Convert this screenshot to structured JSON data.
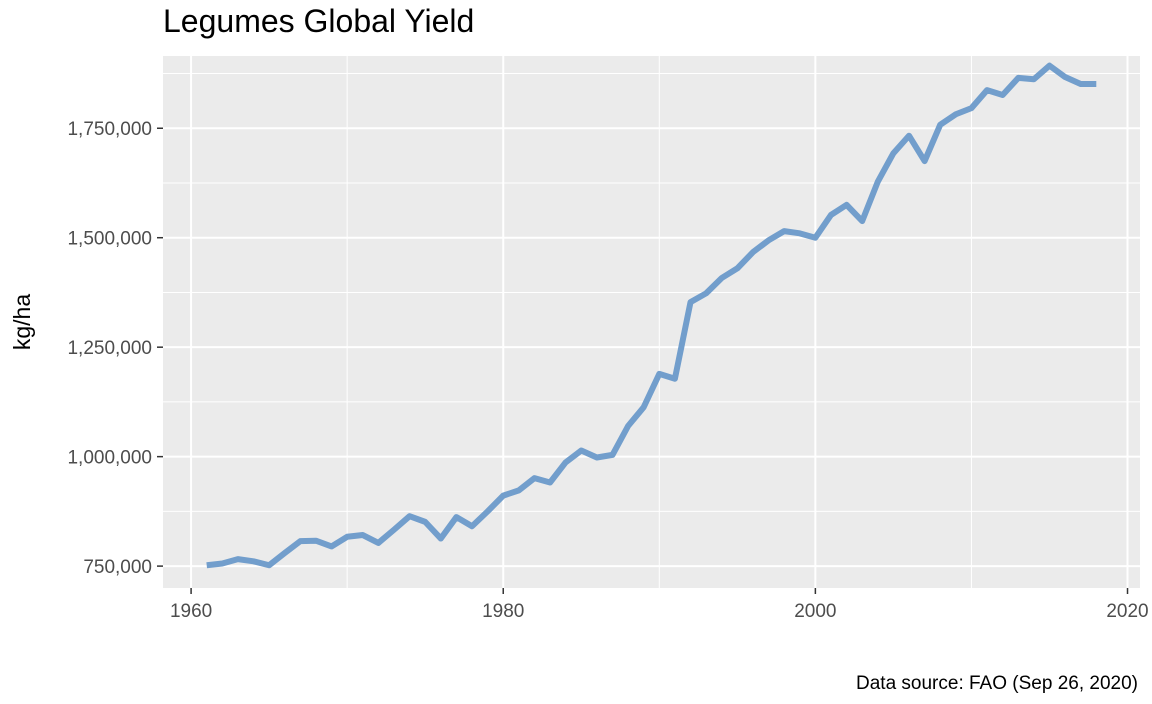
{
  "chart_data": {
    "type": "line",
    "title": "Legumes Global Yield",
    "xlabel": "",
    "ylabel": "kg/ha",
    "caption": "Data source: FAO (Sep 26, 2020)",
    "xlim": [
      1958.2,
      2020.8
    ],
    "ylim": [
      700000,
      1915000
    ],
    "x_ticks": [
      1960,
      1980,
      2000,
      2020
    ],
    "x_tick_labels": [
      "1960",
      "1980",
      "2000",
      "2020"
    ],
    "y_ticks": [
      750000,
      1000000,
      1250000,
      1500000,
      1750000
    ],
    "y_tick_labels": [
      "750,000",
      "1,000,000",
      "1,250,000",
      "1,500,000",
      "1,750,000"
    ],
    "grid": true,
    "line_color": "#729ecc",
    "panel_background": "#ebebeb",
    "series": [
      {
        "x": [
          1961,
          1962,
          1963,
          1964,
          1965,
          1966,
          1967,
          1968,
          1969,
          1970,
          1971,
          1972,
          1973,
          1974,
          1975,
          1976,
          1977,
          1978,
          1979,
          1980,
          1981,
          1982,
          1983,
          1984,
          1985,
          1986,
          1987,
          1988,
          1989,
          1990,
          1991,
          1992,
          1993,
          1994,
          1995,
          1996,
          1997,
          1998,
          1999,
          2000,
          2001,
          2002,
          2003,
          2004,
          2005,
          2006,
          2007,
          2008,
          2009,
          2010,
          2011,
          2012,
          2013,
          2014,
          2015,
          2016,
          2017,
          2018
        ],
        "values": [
          752000,
          756000,
          766000,
          761000,
          752000,
          780000,
          807000,
          808000,
          795000,
          817000,
          821000,
          803000,
          833000,
          864000,
          851000,
          813000,
          862000,
          841000,
          875000,
          911000,
          923000,
          951000,
          941000,
          987000,
          1014000,
          998000,
          1004000,
          1070000,
          1113000,
          1189000,
          1178000,
          1353000,
          1373000,
          1408000,
          1430000,
          1467000,
          1494000,
          1515000,
          1510000,
          1500000,
          1552000,
          1575000,
          1538000,
          1628000,
          1693000,
          1733000,
          1675000,
          1758000,
          1782000,
          1796000,
          1837000,
          1826000,
          1865000,
          1862000,
          1893000,
          1867000,
          1851000,
          1851000
        ]
      }
    ]
  }
}
